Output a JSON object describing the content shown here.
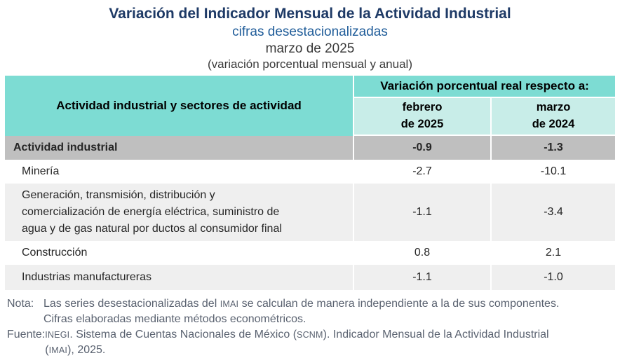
{
  "header": {
    "title": "Variación del Indicador Mensual de la Actividad Industrial",
    "subtitle": "cifras desestacionalizadas",
    "period": "marzo de 2025",
    "units": "(variación porcentual mensual y anual)"
  },
  "table": {
    "col1_header": "Actividad industrial y sectores de actividad",
    "group_header": "Variación porcentual real respecto a:",
    "col_headers": [
      "febrero\nde 2025",
      "marzo\nde 2024"
    ],
    "rows": [
      {
        "label": "Actividad industrial",
        "values": [
          "-0.9",
          "-1.3"
        ],
        "variant": "total"
      },
      {
        "label": "Minería",
        "values": [
          "-2.7",
          "-10.1"
        ],
        "variant": "plain"
      },
      {
        "label": "Generación, transmisión, distribución y\ncomercialización de energía eléctrica, suministro de\nagua y de gas natural por ductos al consumidor final",
        "values": [
          "-1.1",
          "-3.4"
        ],
        "variant": "shaded"
      },
      {
        "label": "Construcción",
        "values": [
          "0.8",
          "2.1"
        ],
        "variant": "plain"
      },
      {
        "label": "Industrias manufactureras",
        "values": [
          "-1.1",
          "-1.0"
        ],
        "variant": "shaded"
      }
    ]
  },
  "notes": [
    {
      "label": "Nota:",
      "lines": [
        [
          {
            "t": "Las series desestacionalizadas del "
          },
          {
            "t": "IMAI",
            "acr": true
          },
          {
            "t": " se calculan de manera independiente a la de sus componentes."
          }
        ],
        [
          {
            "t": "Cifras elaboradas mediante métodos econométricos."
          }
        ]
      ]
    },
    {
      "label": "Fuente:",
      "lines": [
        [
          {
            "t": "INEGI",
            "acr": true
          },
          {
            "t": ". Sistema de Cuentas Nacionales de México ("
          },
          {
            "t": "SCNM",
            "acr": true
          },
          {
            "t": "). Indicador Mensual de la Actividad Industrial"
          }
        ],
        [
          {
            "t": "("
          },
          {
            "t": "IMAI",
            "acr": true
          },
          {
            "t": "), 2025."
          }
        ]
      ]
    }
  ],
  "colors": {
    "header_teal": "#7DDCD3",
    "header_teal_light": "#C8EDE8",
    "row_total": "#BFBFBF",
    "row_shaded": "#EFEFEF",
    "title_navy": "#1E3A66",
    "subtitle_blue": "#1F5C99",
    "note_gray": "#5A6270"
  }
}
